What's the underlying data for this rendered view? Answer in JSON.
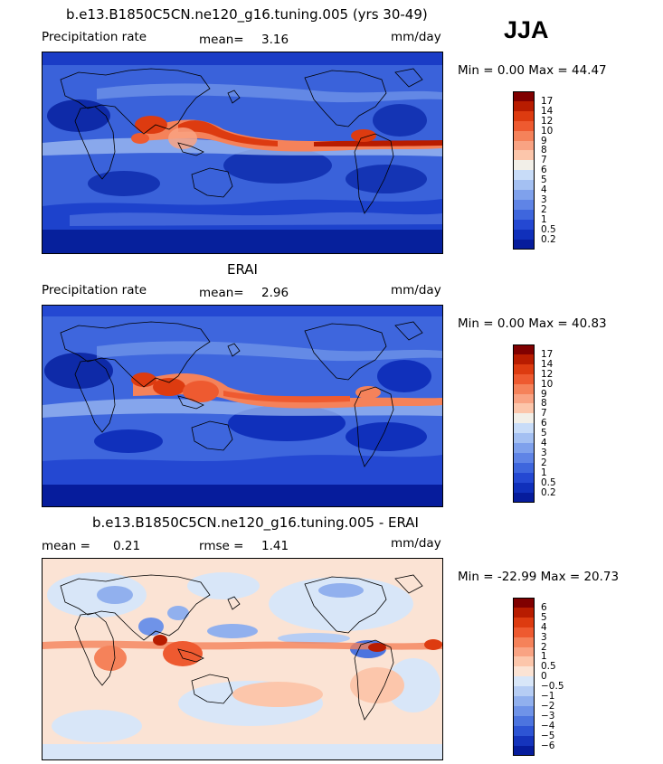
{
  "season": "JJA",
  "panels": [
    {
      "title": "b.e13.B1850C5CN.ne120_g16.tuning.005 (yrs 30-49)",
      "left_label": "Precipitation rate",
      "stat_label": "mean=",
      "stat_value": "3.16",
      "stat2_label": "",
      "stat2_value": "",
      "units": "mm/day",
      "minmax": "Min =   0.00 Max =  44.47",
      "colorbar": {
        "colors": [
          "#800000",
          "#b81c00",
          "#dd3b10",
          "#ee5a30",
          "#f5825a",
          "#f9a383",
          "#fcc6ab",
          "#f2efe8",
          "#c8dcf8",
          "#a4c0f2",
          "#7fa1ec",
          "#5f84e6",
          "#3e66dd",
          "#2448d2",
          "#1030bb",
          "#061c9c"
        ],
        "labels": [
          "17",
          "14",
          "12",
          "10",
          "9",
          "8",
          "7",
          "6",
          "5",
          "4",
          "3",
          "2",
          "1",
          "0.5",
          "0.2"
        ]
      }
    },
    {
      "title": "ERAI",
      "left_label": "Precipitation rate",
      "stat_label": "mean=",
      "stat_value": "2.96",
      "stat2_label": "",
      "stat2_value": "",
      "units": "mm/day",
      "minmax": "Min =   0.00 Max =  40.83",
      "colorbar": {
        "colors": [
          "#800000",
          "#b81c00",
          "#dd3b10",
          "#ee5a30",
          "#f5825a",
          "#f9a383",
          "#fcc6ab",
          "#f2efe8",
          "#c8dcf8",
          "#a4c0f2",
          "#7fa1ec",
          "#5f84e6",
          "#3e66dd",
          "#2448d2",
          "#1030bb",
          "#061c9c"
        ],
        "labels": [
          "17",
          "14",
          "12",
          "10",
          "9",
          "8",
          "7",
          "6",
          "5",
          "4",
          "3",
          "2",
          "1",
          "0.5",
          "0.2"
        ]
      }
    },
    {
      "title": "b.e13.B1850C5CN.ne120_g16.tuning.005 - ERAI",
      "left_label": "",
      "stat_label": "mean =",
      "stat_value": "0.21",
      "stat2_label": "rmse =",
      "stat2_value": "1.41",
      "units": "mm/day",
      "minmax": "Min = -22.99 Max =  20.73",
      "colorbar": {
        "colors": [
          "#800000",
          "#b81c00",
          "#dd3b10",
          "#ee5a30",
          "#f5825a",
          "#f9a383",
          "#fcc6ab",
          "#fbe3d4",
          "#d8e6f8",
          "#b6cdf4",
          "#91b0ee",
          "#6f93e8",
          "#4c74df",
          "#2d54d4",
          "#1534bc",
          "#061c9c"
        ],
        "labels": [
          "6",
          "5",
          "4",
          "3",
          "2",
          "1",
          "0.5",
          "0",
          "−0.5",
          "−1",
          "−2",
          "−3",
          "−4",
          "−5",
          "−6"
        ]
      }
    }
  ]
}
